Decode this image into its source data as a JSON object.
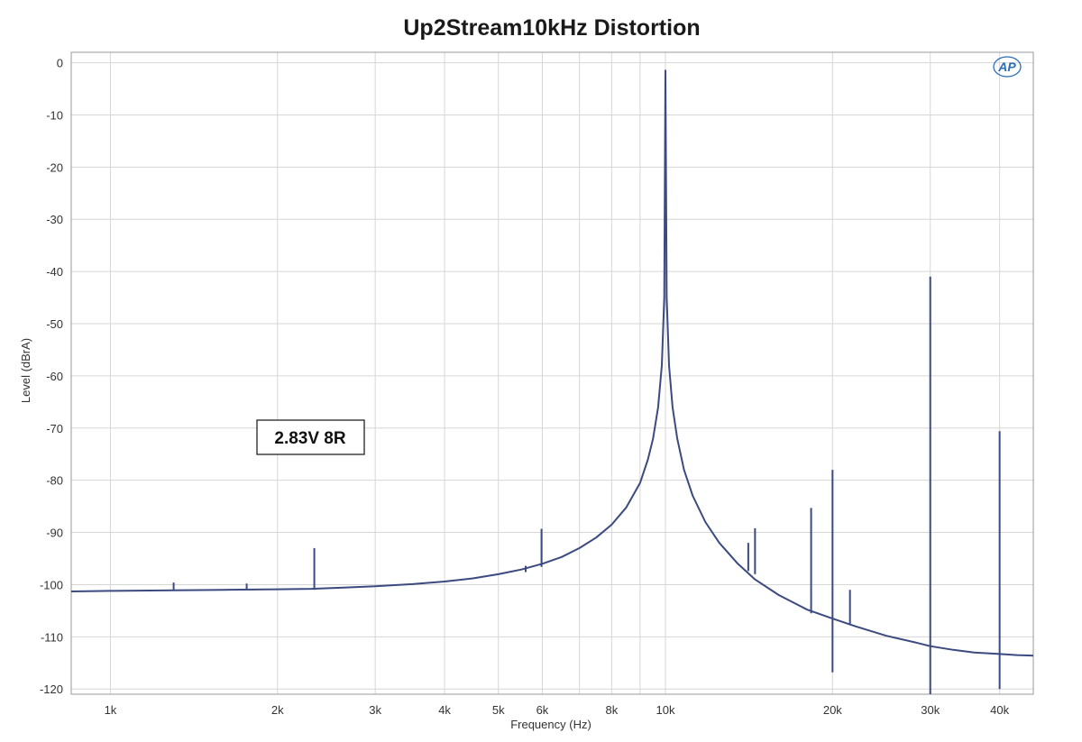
{
  "chart_data": {
    "type": "line",
    "title": "Up2Stream10kHz Distortion",
    "xlabel": "Frequency (Hz)",
    "ylabel": "Level (dBrA)",
    "x_scale": "log",
    "xlim": [
      850,
      46000
    ],
    "ylim": [
      -121,
      2
    ],
    "x_ticks": [
      {
        "value": 1000,
        "label": "1k"
      },
      {
        "value": 2000,
        "label": "2k"
      },
      {
        "value": 3000,
        "label": "3k"
      },
      {
        "value": 4000,
        "label": "4k"
      },
      {
        "value": 5000,
        "label": "5k"
      },
      {
        "value": 6000,
        "label": "6k"
      },
      {
        "value": 8000,
        "label": "8k"
      },
      {
        "value": 10000,
        "label": "10k"
      },
      {
        "value": 20000,
        "label": "20k"
      },
      {
        "value": 30000,
        "label": "30k"
      },
      {
        "value": 40000,
        "label": "40k"
      }
    ],
    "x_minor_grid": [
      7000,
      9000
    ],
    "y_ticks": [
      0,
      -10,
      -20,
      -30,
      -40,
      -50,
      -60,
      -70,
      -80,
      -90,
      -100,
      -110,
      -120
    ],
    "grid": true,
    "line_color": "#3b4a80",
    "annotation": "2.83V 8R",
    "logo_text": "AP",
    "series": [
      {
        "x": [
          850,
          1000,
          1300,
          1600,
          2000,
          2300,
          2600,
          3000,
          3500,
          4000,
          4500,
          5000,
          5500,
          6000,
          6500,
          7000,
          7500,
          8000,
          8500,
          9000,
          9300,
          9500,
          9700,
          9850,
          9950,
          10000,
          10050,
          10150,
          10300,
          10500,
          10800,
          11200,
          11800,
          12500,
          13500,
          14500,
          16000,
          18000,
          20000,
          22000,
          25000,
          28000,
          30000,
          33000,
          36000,
          40000,
          43000,
          46000
        ],
        "y": [
          -101.3,
          -101.2,
          -101.1,
          -101.0,
          -100.9,
          -100.8,
          -100.6,
          -100.3,
          -99.9,
          -99.4,
          -98.8,
          -98.0,
          -97.1,
          -96.0,
          -94.7,
          -93.0,
          -91.0,
          -88.5,
          -85.2,
          -80.5,
          -76.0,
          -72.0,
          -66.0,
          -58.0,
          -45.0,
          -1.5,
          -45.0,
          -58.0,
          -66.0,
          -72.0,
          -78.0,
          -83.0,
          -88.0,
          -92.0,
          -96.0,
          -99.0,
          -102.0,
          -104.8,
          -106.5,
          -108.0,
          -109.8,
          -111.0,
          -111.8,
          -112.5,
          -113.0,
          -113.3,
          -113.5,
          -113.6
        ]
      }
    ],
    "spurs": [
      {
        "x": 1300,
        "top": -99.6,
        "bottom": -101.2
      },
      {
        "x": 1760,
        "top": -99.8,
        "bottom": -101.0
      },
      {
        "x": 2330,
        "top": -93.0,
        "bottom": -101.0
      },
      {
        "x": 5600,
        "top": -96.4,
        "bottom": -97.6
      },
      {
        "x": 5980,
        "top": -89.3,
        "bottom": -96.6
      },
      {
        "x": 14100,
        "top": -92.0,
        "bottom": -97.4
      },
      {
        "x": 14500,
        "top": -89.2,
        "bottom": -98.0
      },
      {
        "x": 18300,
        "top": -85.3,
        "bottom": -105.5
      },
      {
        "x": 20000,
        "top": -78.0,
        "bottom": -116.8
      },
      {
        "x": 21500,
        "top": -101.0,
        "bottom": -107.5
      },
      {
        "x": 30000,
        "top": -41.0,
        "bottom": -121.0
      },
      {
        "x": 40000,
        "top": -70.6,
        "bottom": -120.0
      }
    ]
  }
}
